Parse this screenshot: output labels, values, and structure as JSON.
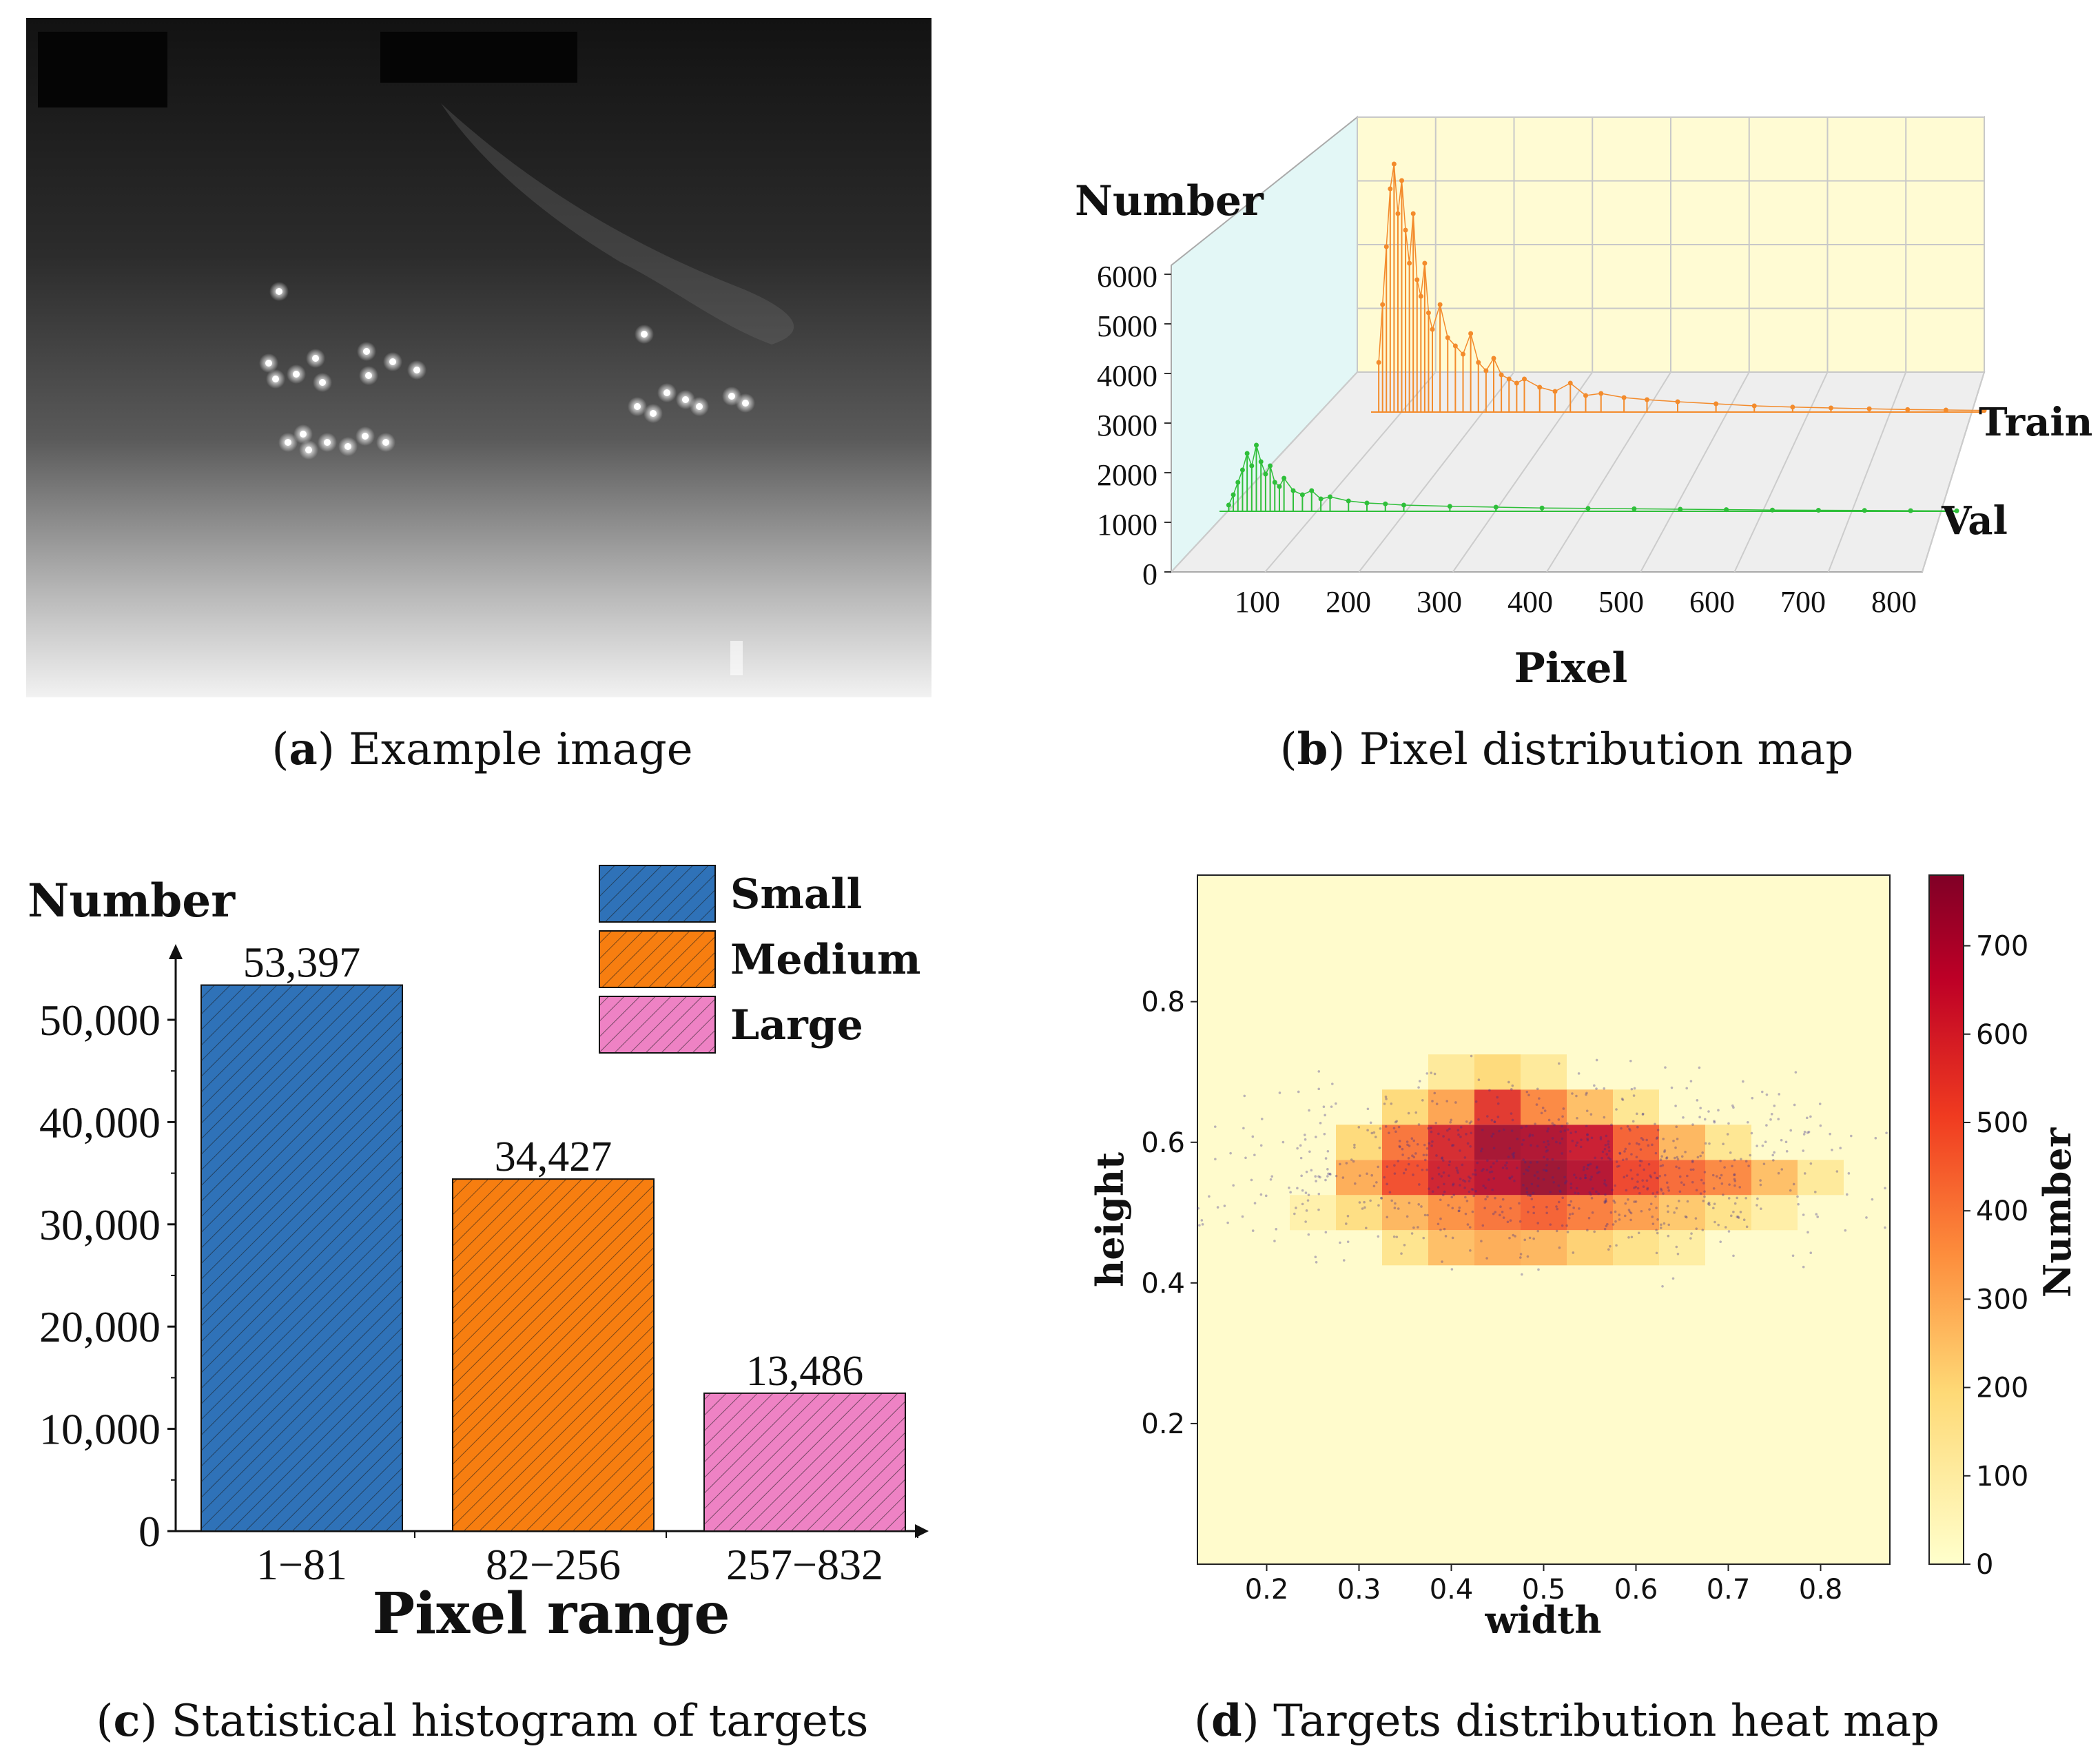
{
  "captions": {
    "a": {
      "letter": "a",
      "text": " Example image"
    },
    "b": {
      "letter": "b",
      "text": " Pixel distribution map"
    },
    "c": {
      "letter": "c",
      "text": " Statistical histogram of targets"
    },
    "d": {
      "letter": "d",
      "text": " Targets distribution heat map"
    }
  },
  "colors": {
    "small": "#2f72b8",
    "medium": "#f77e10",
    "large": "#ee82c4",
    "train": "#f38b2c",
    "val": "#2fbf3a",
    "wall": "#fffbd3",
    "floor": "#eeeeee",
    "side": "#e3f7f6"
  },
  "chart_data": [
    {
      "panel": "b",
      "type": "line",
      "title": "Pixel distribution map",
      "xlabel": "Pixel",
      "ylabel": "Number",
      "ylim": [
        0,
        6000
      ],
      "xlim": [
        0,
        800
      ],
      "xticks": [
        "100",
        "200",
        "300",
        "400",
        "500",
        "600",
        "700",
        "800"
      ],
      "yticks": [
        "0",
        "1000",
        "2000",
        "3000",
        "4000",
        "5000",
        "6000"
      ],
      "series_labels": [
        "Train",
        "Val"
      ],
      "series": [
        {
          "name": "Train",
          "x": [
            10,
            15,
            20,
            25,
            30,
            35,
            40,
            45,
            50,
            55,
            60,
            65,
            70,
            75,
            80,
            90,
            100,
            110,
            120,
            130,
            140,
            150,
            160,
            170,
            180,
            190,
            200,
            220,
            240,
            260,
            280,
            300,
            330,
            360,
            400,
            450,
            500,
            550,
            600,
            650,
            700,
            750,
            800
          ],
          "values": [
            1200,
            2600,
            4000,
            5400,
            6000,
            4800,
            5600,
            4400,
            3600,
            4800,
            3200,
            2800,
            3600,
            2400,
            2000,
            2600,
            1800,
            1600,
            1400,
            1900,
            1200,
            1000,
            1300,
            900,
            800,
            700,
            800,
            600,
            500,
            700,
            400,
            450,
            350,
            300,
            250,
            200,
            150,
            120,
            100,
            80,
            60,
            50,
            40
          ]
        },
        {
          "name": "Val",
          "x": [
            10,
            15,
            20,
            25,
            30,
            35,
            40,
            45,
            50,
            55,
            60,
            65,
            70,
            80,
            90,
            100,
            110,
            120,
            140,
            160,
            180,
            200,
            250,
            300,
            350,
            400,
            450,
            500,
            550,
            600,
            650,
            700,
            750,
            800
          ],
          "values": [
            150,
            400,
            700,
            1000,
            1400,
            1100,
            1600,
            1200,
            900,
            1100,
            700,
            600,
            800,
            500,
            400,
            500,
            300,
            350,
            250,
            200,
            180,
            150,
            120,
            100,
            80,
            70,
            60,
            50,
            40,
            30,
            25,
            20,
            15,
            10
          ]
        }
      ]
    },
    {
      "panel": "c",
      "type": "bar",
      "title": "Statistical histogram of targets",
      "xlabel": "Pixel range",
      "ylabel": "Number",
      "ylim": [
        0,
        60000
      ],
      "yticks": [
        "0",
        "10,000",
        "20,000",
        "30,000",
        "40,000",
        "50,000"
      ],
      "categories": [
        "1−81",
        "82−256",
        "257−832"
      ],
      "values": [
        53397,
        34427,
        13486
      ],
      "value_labels": [
        "53,397",
        "34,427",
        "13,486"
      ],
      "legend": [
        "Small",
        "Medium",
        "Large"
      ]
    },
    {
      "panel": "d",
      "type": "heatmap",
      "title": "Targets distribution heat map",
      "xlabel": "width",
      "ylabel": "height",
      "xlim": [
        0.125,
        0.875
      ],
      "ylim": [
        0.0,
        0.98
      ],
      "xticks": [
        "0.2",
        "0.3",
        "0.4",
        "0.5",
        "0.6",
        "0.7",
        "0.8"
      ],
      "yticks": [
        "0.2",
        "0.4",
        "0.6",
        "0.8"
      ],
      "colorbar_label": "Number",
      "colorbar_ticks": [
        "0",
        "100",
        "200",
        "300",
        "400",
        "500",
        "600",
        "700"
      ],
      "colorbar_range": [
        0,
        780
      ],
      "cells": [
        [
          0.25,
          0.5,
          80
        ],
        [
          0.3,
          0.5,
          180
        ],
        [
          0.35,
          0.5,
          280
        ],
        [
          0.4,
          0.5,
          360
        ],
        [
          0.45,
          0.5,
          420
        ],
        [
          0.5,
          0.5,
          460
        ],
        [
          0.55,
          0.5,
          400
        ],
        [
          0.6,
          0.5,
          330
        ],
        [
          0.65,
          0.5,
          240
        ],
        [
          0.7,
          0.5,
          160
        ],
        [
          0.75,
          0.5,
          90
        ],
        [
          0.3,
          0.55,
          300
        ],
        [
          0.35,
          0.55,
          500
        ],
        [
          0.4,
          0.55,
          620
        ],
        [
          0.45,
          0.55,
          680
        ],
        [
          0.5,
          0.55,
          740
        ],
        [
          0.55,
          0.55,
          690
        ],
        [
          0.6,
          0.55,
          520
        ],
        [
          0.65,
          0.55,
          440
        ],
        [
          0.7,
          0.55,
          380
        ],
        [
          0.75,
          0.55,
          260
        ],
        [
          0.8,
          0.55,
          120
        ],
        [
          0.3,
          0.6,
          200
        ],
        [
          0.35,
          0.6,
          420
        ],
        [
          0.4,
          0.6,
          600
        ],
        [
          0.45,
          0.6,
          720
        ],
        [
          0.5,
          0.6,
          700
        ],
        [
          0.55,
          0.6,
          640
        ],
        [
          0.6,
          0.6,
          460
        ],
        [
          0.65,
          0.6,
          280
        ],
        [
          0.7,
          0.6,
          140
        ],
        [
          0.35,
          0.65,
          200
        ],
        [
          0.4,
          0.65,
          320
        ],
        [
          0.45,
          0.65,
          560
        ],
        [
          0.5,
          0.65,
          380
        ],
        [
          0.55,
          0.65,
          260
        ],
        [
          0.6,
          0.65,
          140
        ],
        [
          0.4,
          0.7,
          120
        ],
        [
          0.45,
          0.7,
          200
        ],
        [
          0.5,
          0.7,
          120
        ],
        [
          0.35,
          0.45,
          150
        ],
        [
          0.4,
          0.45,
          260
        ],
        [
          0.45,
          0.45,
          300
        ],
        [
          0.5,
          0.45,
          280
        ],
        [
          0.55,
          0.45,
          220
        ],
        [
          0.6,
          0.45,
          160
        ],
        [
          0.65,
          0.45,
          100
        ]
      ]
    }
  ],
  "image_a": {
    "description_hidden": true
  }
}
